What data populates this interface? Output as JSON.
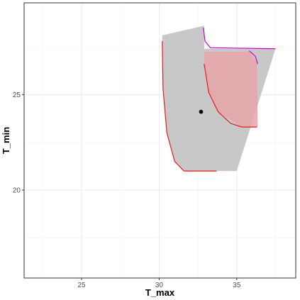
{
  "chart_data": {
    "type": "scatter",
    "xlabel": "T_max",
    "ylabel": "T_min",
    "xlim": [
      21.3,
      38.8
    ],
    "ylim": [
      15.4,
      29.8
    ],
    "x_ticks": [
      25,
      30,
      35
    ],
    "y_ticks": [
      20,
      25
    ],
    "grid": true,
    "colors": {
      "panel_border": "#333333",
      "grid_major": "#ebebeb",
      "grid_minor": "#f5f5f5",
      "grey_fill": "#c8c8c8",
      "pink_fill": "#e8a5a8",
      "red_line": "#e41a1c",
      "magenta_line": "#cc00cc",
      "point": "#000000"
    },
    "regions": [
      {
        "fill": "grey_fill",
        "polygon": [
          [
            30.2,
            28.1
          ],
          [
            32.9,
            28.6
          ],
          [
            32.9,
            27.4
          ],
          [
            37.5,
            27.4
          ],
          [
            35.0,
            21.0
          ],
          [
            33.7,
            21.0
          ],
          [
            31.6,
            21.0
          ],
          [
            31.0,
            21.5
          ],
          [
            30.5,
            23.0
          ],
          [
            30.25,
            25.3
          ],
          [
            30.2,
            27.8
          ]
        ]
      },
      {
        "fill": "pink_fill",
        "polygon": [
          [
            32.9,
            27.25
          ],
          [
            35.8,
            27.25
          ],
          [
            36.3,
            26.7
          ],
          [
            36.35,
            23.3
          ],
          [
            35.3,
            23.3
          ],
          [
            33.8,
            24.1
          ],
          [
            33.2,
            25.1
          ],
          [
            32.9,
            26.6
          ]
        ]
      }
    ],
    "lines": [
      {
        "color": "red_line",
        "points": [
          [
            30.2,
            27.8
          ],
          [
            30.25,
            25.3
          ],
          [
            30.5,
            23.0
          ],
          [
            31.0,
            21.5
          ],
          [
            31.6,
            21.0
          ],
          [
            33.7,
            21.0
          ]
        ]
      },
      {
        "color": "red_line",
        "points": [
          [
            32.9,
            26.6
          ],
          [
            33.2,
            25.1
          ],
          [
            33.8,
            24.1
          ],
          [
            34.6,
            23.5
          ],
          [
            35.3,
            23.3
          ],
          [
            36.3,
            23.3
          ]
        ]
      },
      {
        "color": "magenta_line",
        "points": [
          [
            32.85,
            28.5
          ],
          [
            32.95,
            27.8
          ],
          [
            33.3,
            27.45
          ],
          [
            37.5,
            27.4
          ]
        ]
      },
      {
        "color": "magenta_line",
        "points": [
          [
            35.8,
            27.3
          ],
          [
            36.2,
            27.0
          ],
          [
            36.35,
            26.6
          ]
        ]
      }
    ],
    "points": [
      {
        "x": 32.7,
        "y": 24.1
      }
    ]
  }
}
